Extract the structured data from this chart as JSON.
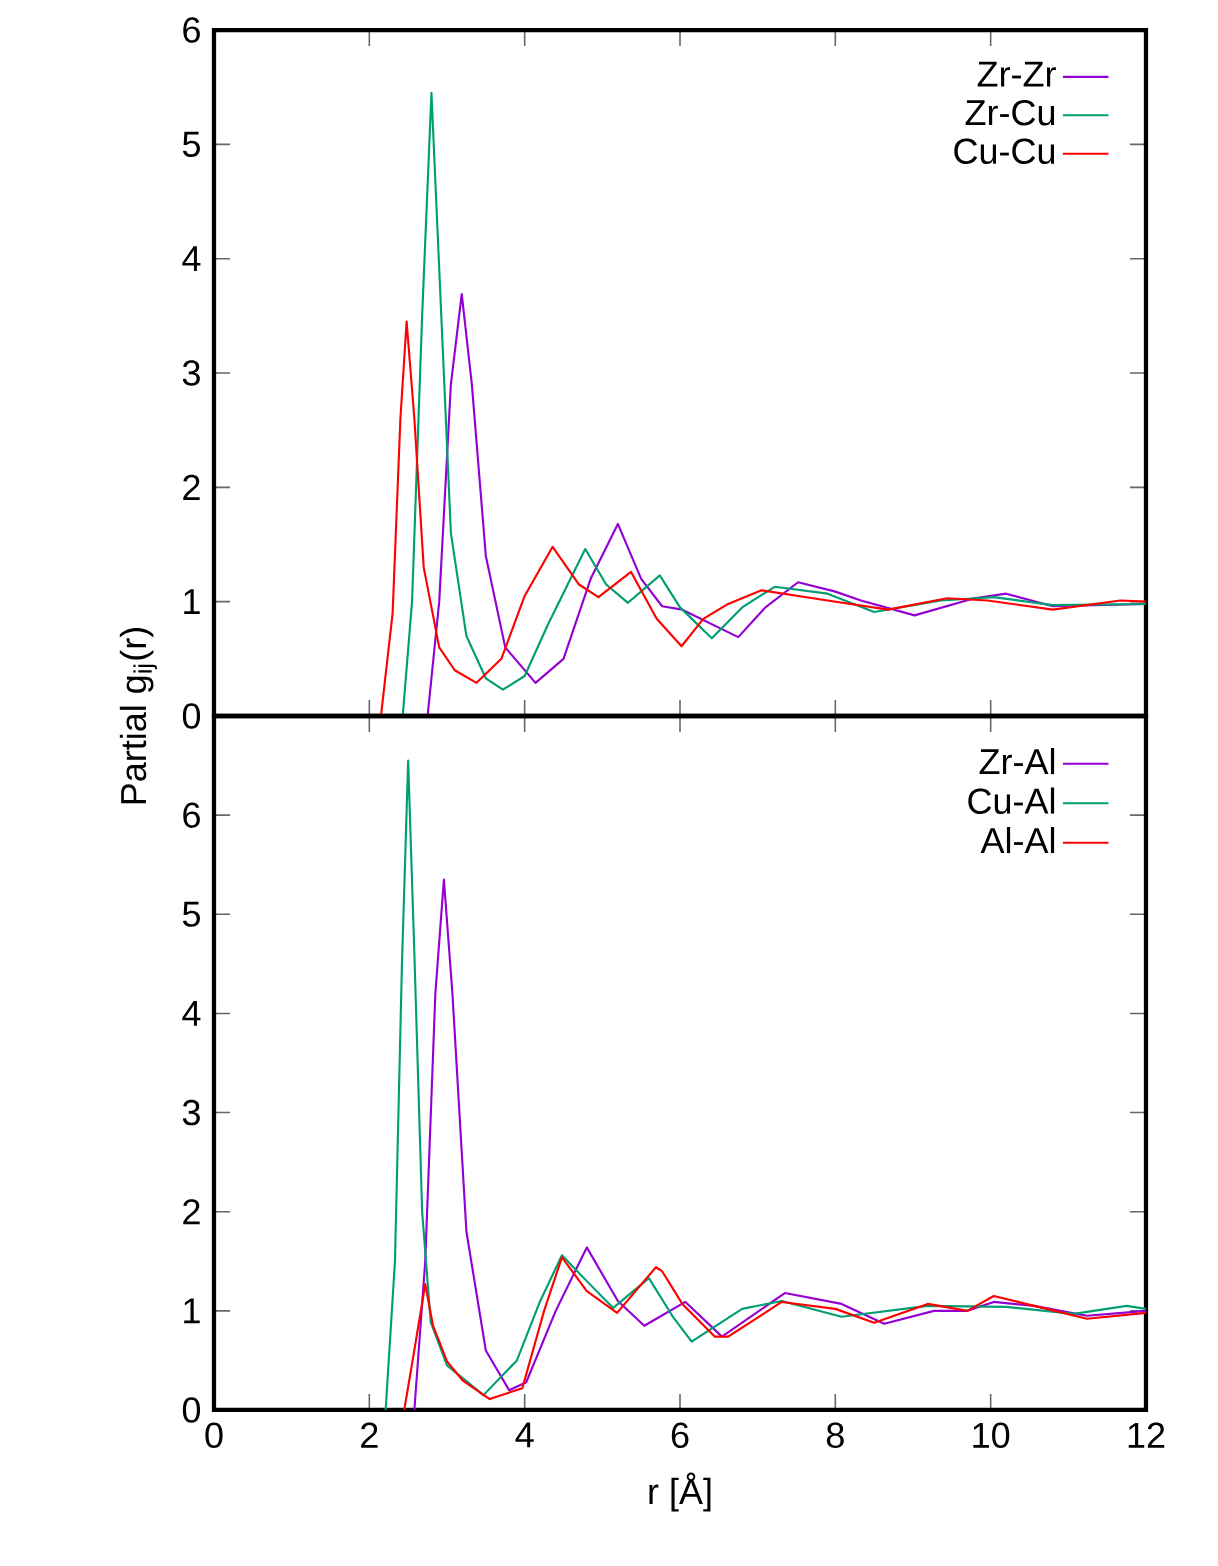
{
  "chart_data": [
    {
      "type": "line",
      "ylabel": "Partial g$_{ij}$(r)",
      "xlim": [
        0,
        12
      ],
      "ylim": [
        0,
        6
      ],
      "xticks": [
        0,
        2,
        4,
        6,
        8,
        10,
        12
      ],
      "yticks": [
        0,
        1,
        2,
        3,
        4,
        5,
        6
      ],
      "tick_labels": "y",
      "legend": "top right",
      "series": [
        {
          "name": "Zr-Zr",
          "color": "#9400d3",
          "x": [
            2.75,
            2.9,
            3.05,
            3.19,
            3.32,
            3.5,
            3.75,
            4.14,
            4.5,
            4.85,
            5.2,
            5.5,
            5.77,
            6.03,
            6.75,
            7.1,
            7.52,
            7.99,
            8.33,
            9.02,
            9.79,
            10.2,
            10.8,
            12
          ],
          "values": [
            0,
            1.0,
            2.9,
            3.69,
            2.9,
            1.4,
            0.6,
            0.29,
            0.5,
            1.2,
            1.68,
            1.2,
            0.96,
            0.93,
            0.69,
            0.95,
            1.17,
            1.09,
            1.01,
            0.88,
            1.03,
            1.07,
            0.96,
            0.98
          ]
        },
        {
          "name": "Zr-Cu",
          "color": "#009e73",
          "x": [
            2.43,
            2.55,
            2.68,
            2.8,
            2.92,
            3.05,
            3.25,
            3.5,
            3.72,
            4.0,
            4.3,
            4.78,
            5.05,
            5.33,
            5.74,
            6.0,
            6.41,
            6.8,
            7.22,
            7.9,
            8.5,
            9.36,
            10.04,
            10.8,
            12
          ],
          "values": [
            0,
            1.0,
            3.5,
            5.45,
            3.6,
            1.6,
            0.7,
            0.33,
            0.23,
            0.35,
            0.8,
            1.46,
            1.15,
            0.99,
            1.23,
            0.95,
            0.68,
            0.95,
            1.13,
            1.07,
            0.91,
            1.01,
            1.04,
            0.97,
            0.98
          ]
        },
        {
          "name": "Cu-Cu",
          "color": "#ff0000",
          "x": [
            2.15,
            2.3,
            2.4,
            2.48,
            2.58,
            2.7,
            2.9,
            3.1,
            3.38,
            3.7,
            4.0,
            4.36,
            4.7,
            4.95,
            5.37,
            5.7,
            6.02,
            6.3,
            6.62,
            7.05,
            7.9,
            8.68,
            9.44,
            9.96,
            10.8,
            11.67,
            12
          ],
          "values": [
            0,
            0.9,
            2.6,
            3.45,
            2.6,
            1.3,
            0.6,
            0.4,
            0.29,
            0.5,
            1.05,
            1.48,
            1.15,
            1.04,
            1.26,
            0.85,
            0.61,
            0.85,
            0.98,
            1.1,
            1.01,
            0.93,
            1.03,
            1.01,
            0.93,
            1.01,
            1.0
          ]
        }
      ]
    },
    {
      "type": "line",
      "xlabel": "r [Å]",
      "xlim": [
        0,
        12
      ],
      "ylim": [
        0,
        7
      ],
      "xticks": [
        0,
        2,
        4,
        6,
        8,
        10,
        12
      ],
      "yticks": [
        0,
        1,
        2,
        3,
        4,
        5,
        6
      ],
      "legend": "top right",
      "series": [
        {
          "name": "Zr-Al",
          "color": "#9400d3",
          "x": [
            2.58,
            2.72,
            2.85,
            2.96,
            3.07,
            3.25,
            3.5,
            3.8,
            4.02,
            4.4,
            4.8,
            5.2,
            5.54,
            6.07,
            6.54,
            7.35,
            8.08,
            8.63,
            9.27,
            9.7,
            10.04,
            10.56,
            11.24,
            12
          ],
          "values": [
            0,
            1.5,
            4.2,
            5.35,
            4.2,
            1.8,
            0.6,
            0.2,
            0.28,
            1.0,
            1.64,
            1.1,
            0.85,
            1.09,
            0.74,
            1.18,
            1.07,
            0.87,
            1.0,
            1.0,
            1.09,
            1.05,
            0.95,
            1.0
          ]
        },
        {
          "name": "Cu-Al",
          "color": "#009e73",
          "x": [
            2.21,
            2.33,
            2.42,
            2.5,
            2.58,
            2.68,
            2.79,
            3.0,
            3.47,
            3.9,
            4.2,
            4.48,
            4.8,
            5.14,
            5.6,
            5.9,
            6.15,
            6.8,
            7.31,
            8.08,
            9.19,
            10.2,
            11.07,
            11.75,
            12
          ],
          "values": [
            0,
            1.5,
            4.5,
            6.55,
            4.6,
            2.0,
            0.89,
            0.45,
            0.15,
            0.5,
            1.1,
            1.56,
            1.3,
            1.03,
            1.33,
            0.95,
            0.69,
            1.02,
            1.1,
            0.94,
            1.05,
            1.04,
            0.97,
            1.05,
            1.02
          ]
        },
        {
          "name": "Al-Al",
          "color": "#ff0000",
          "x": [
            2.45,
            2.6,
            2.72,
            2.82,
            3.0,
            3.2,
            3.55,
            3.97,
            4.25,
            4.48,
            4.8,
            5.19,
            5.69,
            5.77,
            6.03,
            6.45,
            6.62,
            7.31,
            8.0,
            8.5,
            9.19,
            9.7,
            10.04,
            10.56,
            11.24,
            12
          ],
          "values": [
            0,
            0.7,
            1.27,
            0.85,
            0.49,
            0.3,
            0.11,
            0.22,
            1.0,
            1.54,
            1.2,
            0.98,
            1.44,
            1.4,
            1.07,
            0.74,
            0.74,
            1.09,
            1.02,
            0.88,
            1.07,
            1.0,
            1.15,
            1.05,
            0.92,
            0.98
          ]
        }
      ]
    }
  ]
}
